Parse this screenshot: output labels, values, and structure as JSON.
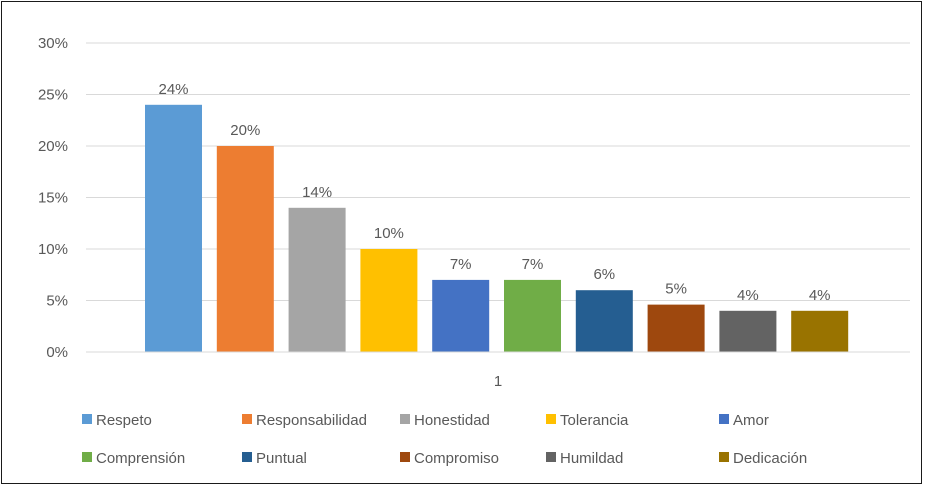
{
  "chart_data": {
    "type": "bar",
    "categories": [
      "1"
    ],
    "series": [
      {
        "name": "Respeto",
        "values": [
          24
        ],
        "label": "24%",
        "color": "#5B9BD5"
      },
      {
        "name": "Responsabilidad",
        "values": [
          20
        ],
        "label": "20%",
        "color": "#ED7D31"
      },
      {
        "name": "Honestidad",
        "values": [
          14
        ],
        "label": "14%",
        "color": "#A5A5A5"
      },
      {
        "name": "Tolerancia",
        "values": [
          10
        ],
        "label": "10%",
        "color": "#FFC000"
      },
      {
        "name": "Amor",
        "values": [
          7
        ],
        "label": "7%",
        "color": "#4472C4"
      },
      {
        "name": "Comprensión",
        "values": [
          7
        ],
        "label": "7%",
        "color": "#70AD47"
      },
      {
        "name": "Puntual",
        "values": [
          6
        ],
        "label": "6%",
        "color": "#255E91"
      },
      {
        "name": "Compromiso",
        "values": [
          4.6
        ],
        "label": "5%",
        "color": "#9E480E"
      },
      {
        "name": "Humildad",
        "values": [
          4
        ],
        "label": "4%",
        "color": "#636363"
      },
      {
        "name": "Dedicación",
        "values": [
          4
        ],
        "label": "4%",
        "color": "#997300"
      }
    ],
    "y_ticks": [
      "0%",
      "5%",
      "10%",
      "15%",
      "20%",
      "25%",
      "30%"
    ],
    "ylim": [
      0,
      30
    ],
    "grid": true,
    "legend_position": "bottom",
    "gridline_color": "#D9D9D9",
    "axis_color": "#D9D9D9"
  }
}
